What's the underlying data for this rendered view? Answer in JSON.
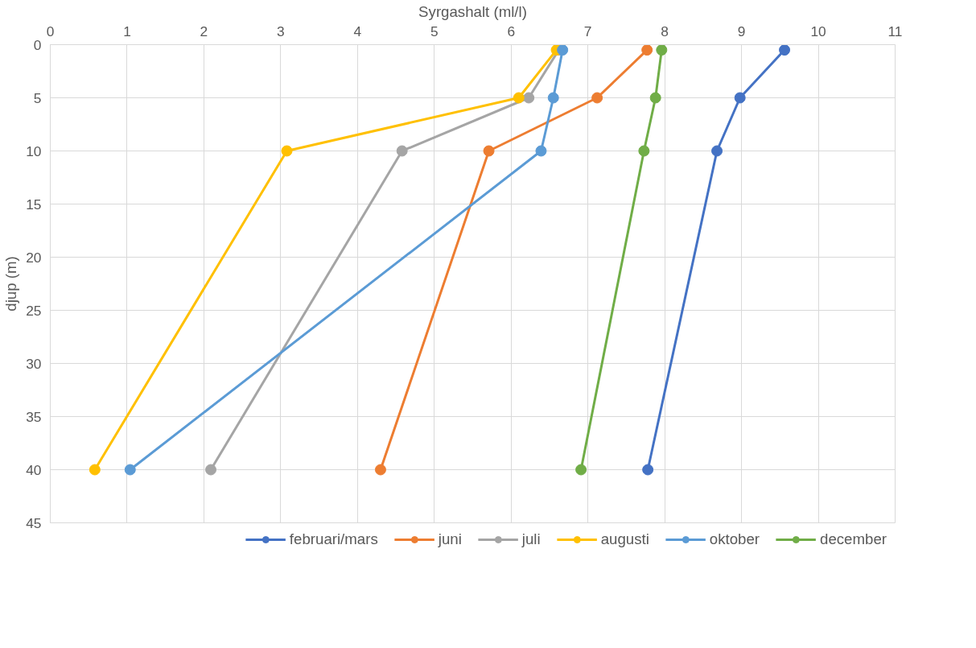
{
  "chart_data": {
    "type": "line",
    "xlabel": "Syrgashalt (ml/l)",
    "ylabel": "djup (m)",
    "xlim": [
      0,
      11
    ],
    "xticks": [
      0,
      1,
      2,
      3,
      4,
      5,
      6,
      7,
      8,
      9,
      10,
      11
    ],
    "ylim": [
      45,
      0
    ],
    "yticks": [
      0,
      5,
      10,
      15,
      20,
      25,
      30,
      35,
      40,
      45
    ],
    "grid": true,
    "legend": "bottom",
    "marker": "circle",
    "line_style": "solid",
    "series": [
      {
        "name": "februari/mars",
        "color": "#4472c4",
        "x": [
          9.56,
          8.98,
          8.68,
          7.78
        ],
        "values": [
          0.5,
          5,
          10,
          40
        ]
      },
      {
        "name": "juni",
        "color": "#ed7d31",
        "x": [
          7.77,
          7.12,
          5.71,
          4.3
        ],
        "values": [
          0.5,
          5,
          10,
          40
        ]
      },
      {
        "name": "juli",
        "color": "#a5a5a5",
        "x": [
          6.62,
          6.23,
          4.58,
          2.09
        ],
        "values": [
          0.5,
          5,
          10,
          40
        ]
      },
      {
        "name": "augusti",
        "color": "#ffc000",
        "x": [
          6.59,
          6.1,
          3.08,
          0.58
        ],
        "values": [
          0.5,
          5,
          10,
          40
        ]
      },
      {
        "name": "oktober",
        "color": "#5b9bd5",
        "x": [
          6.67,
          6.55,
          6.39,
          1.04
        ],
        "values": [
          0.5,
          5,
          10,
          40
        ]
      },
      {
        "name": "december",
        "color": "#70ad47",
        "x": [
          7.96,
          7.88,
          7.73,
          6.91
        ],
        "values": [
          0.5,
          5,
          10,
          40
        ]
      }
    ]
  }
}
